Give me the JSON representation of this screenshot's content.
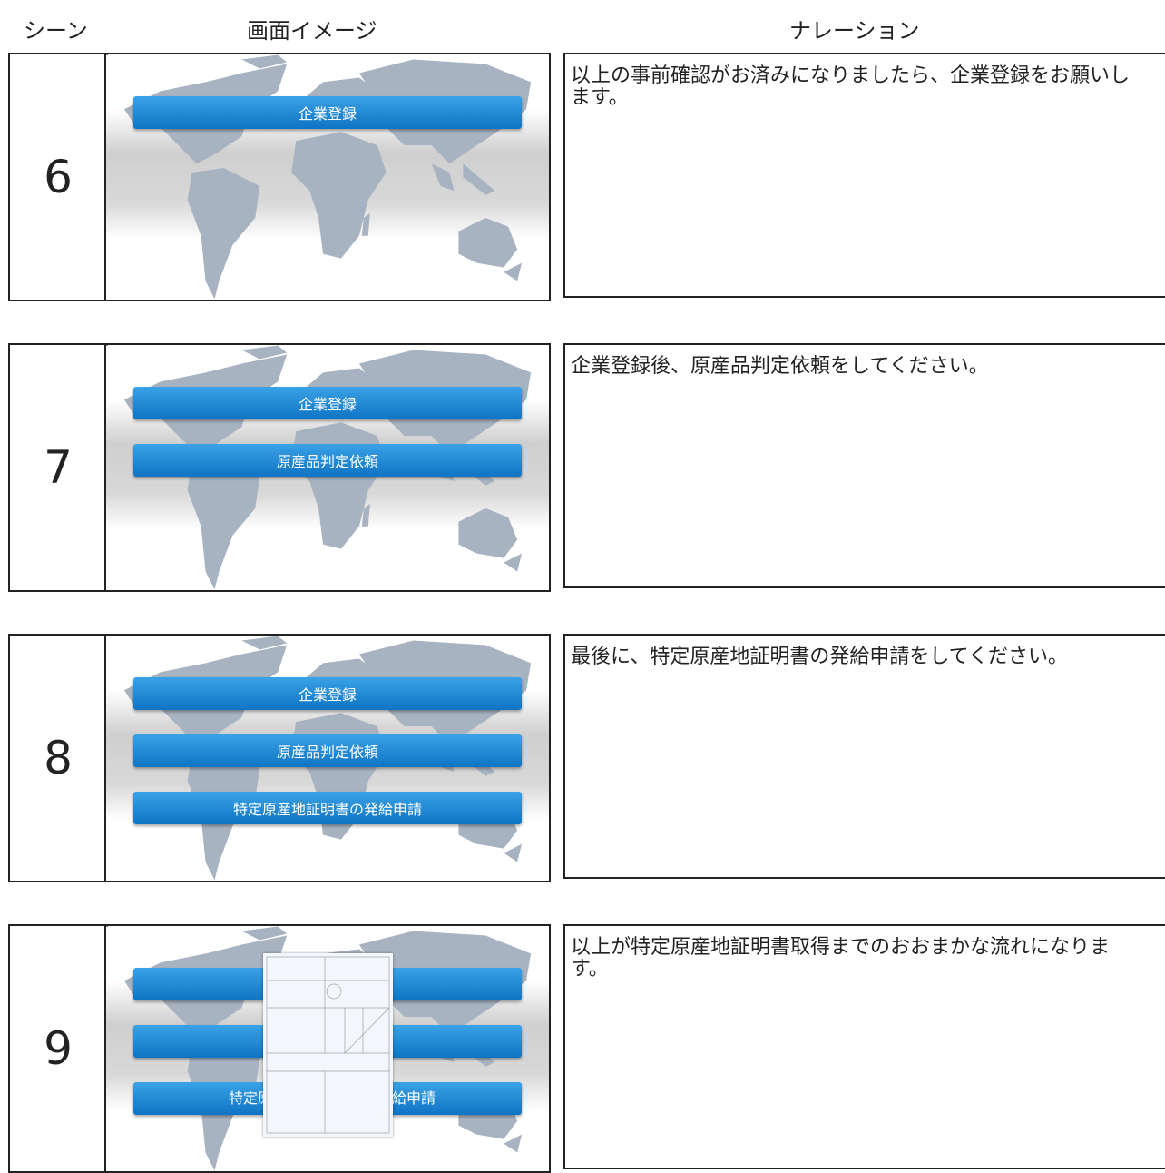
{
  "header": {
    "scene": "シーン",
    "image": "画面イメージ",
    "narration": "ナレーション"
  },
  "scenes": [
    {
      "number": "6",
      "buttons": [
        "企業登録"
      ],
      "narration": "以上の事前確認がお済みになりましたら、企業登録をお願いします。"
    },
    {
      "number": "7",
      "buttons": [
        "企業登録",
        "原産品判定依頼"
      ],
      "narration": "企業登録後、原産品判定依頼をしてください。"
    },
    {
      "number": "8",
      "buttons": [
        "企業登録",
        "原産品判定依頼",
        "特定原産地証明書の発給申請"
      ],
      "narration": "最後に、特定原産地証明書の発給申請をしてください。"
    },
    {
      "number": "9",
      "partial_button_text": [
        "特定原",
        "給申請"
      ],
      "narration": "以上が特定原産地証明書取得までのおおまかな流れになります。"
    }
  ]
}
